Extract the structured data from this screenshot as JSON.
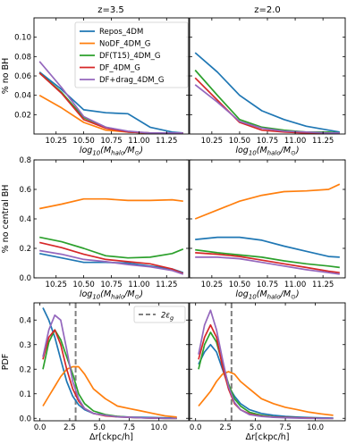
{
  "panel_titles": {
    "left": "z=3.5",
    "right": "z=2.0"
  },
  "legend": {
    "entries": [
      {
        "label": "Repos_4DM",
        "color": "#1f77b4"
      },
      {
        "label": "NoDF_4DM_G",
        "color": "#ff7f0e"
      },
      {
        "label": "DF(T15)_4DM_G",
        "color": "#2ca02c"
      },
      {
        "label": "DF_4DM_G",
        "color": "#d62728"
      },
      {
        "label": "DF+drag_4DM_G",
        "color": "#9467bd"
      }
    ],
    "eps_label": "2ε",
    "eps_subscript": "g"
  },
  "axis_labels": {
    "mass_x": {
      "prefix": "log",
      "sub": "10",
      "body": "(M",
      "body_sub": "halo",
      "tail": "/M",
      "tail_sub": "⊙",
      "close": ")"
    },
    "dr_x": "Δr[ckpc/h]",
    "row1_y": "% no BH",
    "row2_y": "% no central BH",
    "row3_y": "PDF"
  },
  "chart_data": [
    {
      "type": "line",
      "id": "row1-left",
      "ylabel": "% no BH",
      "xlim": [
        10.05,
        11.45
      ],
      "ylim": [
        0,
        0.12
      ],
      "xticks": [
        "10.25",
        "10.50",
        "10.75",
        "11.00",
        "11.25"
      ],
      "yticks": [
        "0.02",
        "0.04",
        "0.06",
        "0.08",
        "0.10"
      ],
      "x": [
        10.1,
        10.3,
        10.5,
        10.7,
        10.9,
        11.1,
        11.3,
        11.4
      ],
      "series": [
        {
          "name": "Repos_4DM",
          "color": "#1f77b4",
          "values": [
            0.064,
            0.046,
            0.025,
            0.022,
            0.021,
            0.007,
            0.002,
            0.001
          ]
        },
        {
          "name": "NoDF_4DM_G",
          "color": "#ff7f0e",
          "values": [
            0.04,
            0.027,
            0.012,
            0.004,
            0.002,
            0.001,
            0.001,
            0.001
          ]
        },
        {
          "name": "DF(T15)_4DM_G",
          "color": "#2ca02c",
          "values": [
            0.063,
            0.043,
            0.017,
            0.007,
            0.002,
            0.001,
            0.001,
            0.001
          ]
        },
        {
          "name": "DF_4DM_G",
          "color": "#d62728",
          "values": [
            0.063,
            0.042,
            0.015,
            0.006,
            0.002,
            0.001,
            0.001,
            0.001
          ]
        },
        {
          "name": "DF+drag_4DM_G",
          "color": "#9467bd",
          "values": [
            0.075,
            0.048,
            0.018,
            0.007,
            0.003,
            0.001,
            0.001,
            0.001
          ]
        }
      ]
    },
    {
      "type": "line",
      "id": "row1-right",
      "xlim": [
        10.05,
        11.45
      ],
      "ylim": [
        0,
        0.12
      ],
      "xticks": [
        "10.25",
        "10.50",
        "10.75",
        "11.00",
        "11.25"
      ],
      "x": [
        10.1,
        10.3,
        10.5,
        10.7,
        10.9,
        11.1,
        11.3,
        11.4
      ],
      "series": [
        {
          "name": "Repos_4DM",
          "color": "#1f77b4",
          "values": [
            0.084,
            0.064,
            0.04,
            0.024,
            0.015,
            0.008,
            0.004,
            0.002
          ]
        },
        {
          "name": "DF(T15)_4DM_G",
          "color": "#2ca02c",
          "values": [
            0.066,
            0.04,
            0.015,
            0.007,
            0.004,
            0.002,
            0.002,
            0.001
          ]
        },
        {
          "name": "DF_4DM_G",
          "color": "#d62728",
          "values": [
            0.058,
            0.035,
            0.012,
            0.004,
            0.002,
            0.001,
            0.001,
            0.001
          ]
        },
        {
          "name": "DF+drag_4DM_G",
          "color": "#9467bd",
          "values": [
            0.051,
            0.033,
            0.013,
            0.006,
            0.003,
            0.002,
            0.001,
            0.001
          ]
        }
      ]
    },
    {
      "type": "line",
      "id": "row2-left",
      "ylabel": "% no central BH",
      "xlim": [
        10.05,
        11.45
      ],
      "ylim": [
        0,
        0.8
      ],
      "xticks": [
        "10.25",
        "10.50",
        "10.75",
        "11.00",
        "11.25"
      ],
      "yticks": [
        "0.0",
        "0.2",
        "0.4",
        "0.6",
        "0.8"
      ],
      "x": [
        10.1,
        10.3,
        10.5,
        10.7,
        10.9,
        11.1,
        11.3,
        11.4
      ],
      "series": [
        {
          "name": "Repos_4DM",
          "color": "#1f77b4",
          "values": [
            0.165,
            0.135,
            0.105,
            0.105,
            0.1,
            0.08,
            0.06,
            0.035
          ]
        },
        {
          "name": "NoDF_4DM_G",
          "color": "#ff7f0e",
          "values": [
            0.47,
            0.5,
            0.535,
            0.535,
            0.525,
            0.525,
            0.53,
            0.52
          ]
        },
        {
          "name": "DF(T15)_4DM_G",
          "color": "#2ca02c",
          "values": [
            0.275,
            0.245,
            0.2,
            0.15,
            0.135,
            0.14,
            0.165,
            0.195
          ]
        },
        {
          "name": "DF_4DM_G",
          "color": "#d62728",
          "values": [
            0.24,
            0.205,
            0.16,
            0.125,
            0.11,
            0.095,
            0.06,
            0.03
          ]
        },
        {
          "name": "DF+drag_4DM_G",
          "color": "#9467bd",
          "values": [
            0.185,
            0.16,
            0.125,
            0.11,
            0.09,
            0.075,
            0.05,
            0.025
          ]
        }
      ]
    },
    {
      "type": "line",
      "id": "row2-right",
      "xlim": [
        10.05,
        11.45
      ],
      "ylim": [
        0,
        0.8
      ],
      "xticks": [
        "10.25",
        "10.50",
        "10.75",
        "11.00",
        "11.25"
      ],
      "x": [
        10.1,
        10.3,
        10.5,
        10.7,
        10.9,
        11.1,
        11.3,
        11.4
      ],
      "series": [
        {
          "name": "Repos_4DM",
          "color": "#1f77b4",
          "values": [
            0.26,
            0.275,
            0.275,
            0.255,
            0.215,
            0.18,
            0.145,
            0.14
          ]
        },
        {
          "name": "NoDF_4DM_G",
          "color": "#ff7f0e",
          "values": [
            0.4,
            0.46,
            0.52,
            0.56,
            0.585,
            0.59,
            0.6,
            0.635
          ]
        },
        {
          "name": "DF(T15)_4DM_G",
          "color": "#2ca02c",
          "values": [
            0.19,
            0.17,
            0.155,
            0.14,
            0.115,
            0.095,
            0.08,
            0.07
          ]
        },
        {
          "name": "DF_4DM_G",
          "color": "#d62728",
          "values": [
            0.17,
            0.16,
            0.145,
            0.12,
            0.095,
            0.07,
            0.045,
            0.035
          ]
        },
        {
          "name": "DF+drag_4DM_G",
          "color": "#9467bd",
          "values": [
            0.14,
            0.14,
            0.13,
            0.105,
            0.08,
            0.055,
            0.035,
            0.025
          ]
        }
      ]
    },
    {
      "type": "line",
      "id": "row3-left",
      "ylabel": "PDF",
      "xlabel": "Δr[ckpc/h]",
      "xlim": [
        -0.5,
        12.5
      ],
      "ylim": [
        -0.01,
        0.47
      ],
      "xticks": [
        "0.0",
        "2.5",
        "5.0",
        "7.5",
        "10.0"
      ],
      "yticks": [
        "0.0",
        "0.1",
        "0.2",
        "0.3",
        "0.4"
      ],
      "vline": {
        "x": 3.0,
        "color": "#808080"
      },
      "x": [
        0.25,
        0.75,
        1.25,
        1.75,
        2.25,
        2.75,
        3.25,
        3.75,
        4.5,
        5.5,
        6.5,
        7.5,
        8.5,
        9.5,
        10.5,
        11.5
      ],
      "series": [
        {
          "name": "Repos_4DM",
          "color": "#1f77b4",
          "values": [
            0.45,
            0.4,
            0.33,
            0.24,
            0.15,
            0.09,
            0.055,
            0.035,
            0.02,
            0.012,
            0.008,
            0.005,
            0.004,
            0.003,
            0.002,
            0.001
          ]
        },
        {
          "name": "NoDF_4DM_G",
          "color": "#ff7f0e",
          "values": [
            0.05,
            0.09,
            0.13,
            0.17,
            0.2,
            0.21,
            0.21,
            0.18,
            0.12,
            0.08,
            0.05,
            0.04,
            0.03,
            0.02,
            0.01,
            0.005
          ]
        },
        {
          "name": "DF(T15)_4DM_G",
          "color": "#2ca02c",
          "values": [
            0.2,
            0.31,
            0.36,
            0.32,
            0.25,
            0.18,
            0.1,
            0.06,
            0.03,
            0.015,
            0.008,
            0.004,
            0.002,
            0.001,
            0.0,
            0.0
          ]
        },
        {
          "name": "DF_4DM_G",
          "color": "#d62728",
          "values": [
            0.24,
            0.33,
            0.36,
            0.3,
            0.2,
            0.12,
            0.07,
            0.04,
            0.02,
            0.01,
            0.006,
            0.004,
            0.002,
            0.001,
            0.0,
            0.0
          ]
        },
        {
          "name": "DF+drag_4DM_G",
          "color": "#9467bd",
          "values": [
            0.25,
            0.36,
            0.42,
            0.4,
            0.28,
            0.15,
            0.08,
            0.04,
            0.02,
            0.012,
            0.006,
            0.004,
            0.002,
            0.001,
            0.0,
            0.0
          ]
        }
      ]
    },
    {
      "type": "line",
      "id": "row3-right",
      "xlabel": "Δr[ckpc/h]",
      "xlim": [
        -0.5,
        12.5
      ],
      "ylim": [
        -0.01,
        0.47
      ],
      "xticks": [
        "0.0",
        "2.5",
        "5.0",
        "7.5",
        "10.0"
      ],
      "vline": {
        "x": 3.0,
        "color": "#808080"
      },
      "x": [
        0.25,
        0.75,
        1.25,
        1.75,
        2.25,
        2.75,
        3.25,
        3.75,
        4.5,
        5.5,
        6.5,
        7.5,
        8.5,
        9.5,
        10.5,
        11.5
      ],
      "series": [
        {
          "name": "Repos_4DM",
          "color": "#1f77b4",
          "values": [
            0.22,
            0.27,
            0.3,
            0.27,
            0.2,
            0.13,
            0.09,
            0.06,
            0.035,
            0.02,
            0.012,
            0.008,
            0.005,
            0.003,
            0.002,
            0.001
          ]
        },
        {
          "name": "NoDF_4DM_G",
          "color": "#ff7f0e",
          "values": [
            0.05,
            0.08,
            0.11,
            0.15,
            0.18,
            0.19,
            0.18,
            0.15,
            0.12,
            0.08,
            0.06,
            0.045,
            0.035,
            0.025,
            0.018,
            0.012
          ]
        },
        {
          "name": "DF(T15)_4DM_G",
          "color": "#2ca02c",
          "values": [
            0.2,
            0.3,
            0.35,
            0.31,
            0.22,
            0.14,
            0.08,
            0.05,
            0.025,
            0.012,
            0.006,
            0.003,
            0.002,
            0.001,
            0.0,
            0.0
          ]
        },
        {
          "name": "DF_4DM_G",
          "color": "#d62728",
          "values": [
            0.24,
            0.33,
            0.38,
            0.33,
            0.21,
            0.12,
            0.06,
            0.035,
            0.018,
            0.009,
            0.005,
            0.003,
            0.002,
            0.001,
            0.0,
            0.0
          ]
        },
        {
          "name": "DF+drag_4DM_G",
          "color": "#9467bd",
          "values": [
            0.26,
            0.38,
            0.44,
            0.36,
            0.24,
            0.13,
            0.065,
            0.035,
            0.015,
            0.008,
            0.004,
            0.002,
            0.001,
            0.0,
            0.0,
            0.0
          ]
        }
      ]
    }
  ]
}
